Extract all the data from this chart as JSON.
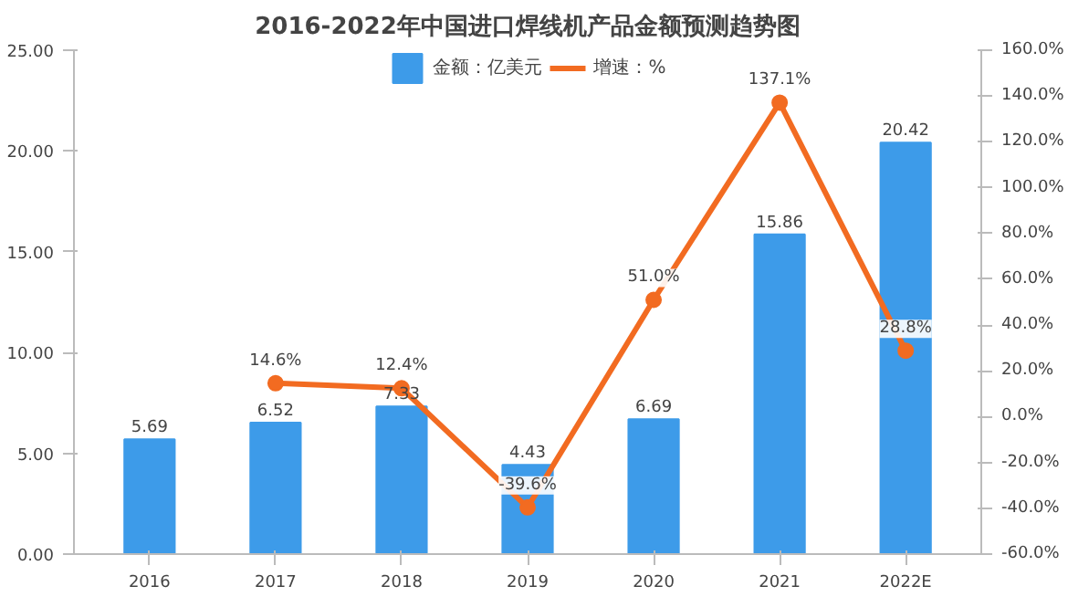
{
  "chart_data": {
    "type": "bar",
    "title": "2016-2022年中国进口焊线机产品金额预测趋势图",
    "categories": [
      "2016",
      "2017",
      "2018",
      "2019",
      "2020",
      "2021",
      "2022E"
    ],
    "series": [
      {
        "name": "金额：亿美元",
        "color": "#3d9be9",
        "values": [
          5.69,
          6.52,
          7.33,
          4.43,
          6.69,
          15.86,
          20.42
        ],
        "data_labels": true
      },
      {
        "name": "增速：%",
        "type": "line",
        "axis": "y2",
        "color": "#f26b21",
        "marker": "circle",
        "values": [
          null,
          14.6,
          12.4,
          -39.6,
          51.0,
          137.1,
          28.8
        ],
        "value_labels": [
          null,
          "14.6%",
          "12.4%",
          "-39.6%",
          "51.0%",
          "137.1%",
          "28.8%"
        ]
      }
    ],
    "ylim": [
      0,
      25
    ],
    "yticks": [
      {
        "value": 0,
        "label": "0.00"
      },
      {
        "value": 5,
        "label": "5.00"
      },
      {
        "value": 10,
        "label": "10.00"
      },
      {
        "value": 15,
        "label": "15.00"
      },
      {
        "value": 20,
        "label": "20.00"
      },
      {
        "value": 25,
        "label": "25.00"
      }
    ],
    "y2lim": [
      -60,
      160
    ],
    "y2ticks": [
      {
        "value": -60,
        "label": "-60.0%"
      },
      {
        "value": -40,
        "label": "-40.0%"
      },
      {
        "value": -20,
        "label": "-20.0%"
      },
      {
        "value": 0,
        "label": "0.0%"
      },
      {
        "value": 20,
        "label": "20.0%"
      },
      {
        "value": 40,
        "label": "40.0%"
      },
      {
        "value": 60,
        "label": "60.0%"
      },
      {
        "value": 80,
        "label": "80.0%"
      },
      {
        "value": 100,
        "label": "100.0%"
      },
      {
        "value": 120,
        "label": "120.0%"
      },
      {
        "value": 140,
        "label": "140.0%"
      },
      {
        "value": 160,
        "label": "160.0%"
      }
    ],
    "grid": false,
    "legend": "top"
  }
}
